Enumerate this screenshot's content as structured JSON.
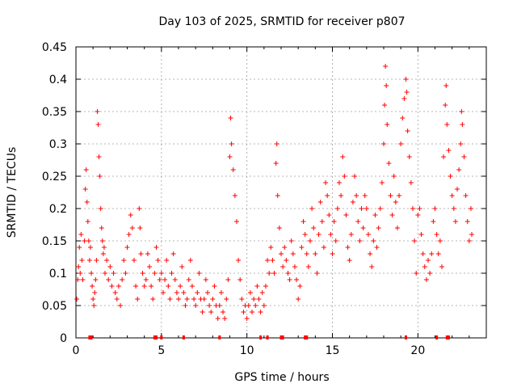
{
  "chart_data": {
    "type": "scatter",
    "title": "Day 103 of 2025, SRMTID for receiver p807",
    "xlabel": "GPS time / hours",
    "ylabel": "SRMTID / TECUs",
    "xlim": [
      0,
      24
    ],
    "ylim": [
      0,
      0.45
    ],
    "xticks": [
      0,
      5,
      10,
      15,
      20
    ],
    "xtick_labels": [
      "0",
      "5",
      "10",
      "15",
      "20"
    ],
    "yticks": [
      0,
      0.05,
      0.1,
      0.15,
      0.2,
      0.25,
      0.3,
      0.35,
      0.4,
      0.45
    ],
    "ytick_labels": [
      "0",
      "0.05",
      "0.1",
      "0.15",
      "0.2",
      "0.25",
      "0.3",
      "0.35",
      "0.4",
      "0.45"
    ],
    "grid": true,
    "marker": "+",
    "color": "#ff0000",
    "series": [
      {
        "name": "SRMTID",
        "points": [
          [
            0.05,
            0.06
          ],
          [
            0.1,
            0.09
          ],
          [
            0.15,
            0.11
          ],
          [
            0.2,
            0.14
          ],
          [
            0.25,
            0.1
          ],
          [
            0.3,
            0.16
          ],
          [
            0.35,
            0.12
          ],
          [
            0.4,
            0.09
          ],
          [
            0.5,
            0.15
          ],
          [
            0.55,
            0.23
          ],
          [
            0.6,
            0.26
          ],
          [
            0.65,
            0.21
          ],
          [
            0.7,
            0.18
          ],
          [
            0.75,
            0.15
          ],
          [
            0.8,
            0.12
          ],
          [
            0.85,
            0.14
          ],
          [
            0.9,
            0.1
          ],
          [
            0.95,
            0.08
          ],
          [
            1.0,
            0.06
          ],
          [
            1.05,
            0.05
          ],
          [
            1.1,
            0.07
          ],
          [
            1.15,
            0.09
          ],
          [
            1.2,
            0.12
          ],
          [
            1.25,
            0.35
          ],
          [
            1.3,
            0.33
          ],
          [
            1.35,
            0.28
          ],
          [
            1.4,
            0.25
          ],
          [
            1.45,
            0.2
          ],
          [
            1.5,
            0.17
          ],
          [
            1.55,
            0.15
          ],
          [
            1.6,
            0.13
          ],
          [
            1.65,
            0.14
          ],
          [
            1.7,
            0.1
          ],
          [
            1.8,
            0.12
          ],
          [
            1.9,
            0.09
          ],
          [
            2.0,
            0.11
          ],
          [
            2.1,
            0.08
          ],
          [
            2.2,
            0.1
          ],
          [
            2.3,
            0.07
          ],
          [
            2.4,
            0.06
          ],
          [
            2.5,
            0.08
          ],
          [
            2.6,
            0.05
          ],
          [
            2.7,
            0.09
          ],
          [
            2.8,
            0.12
          ],
          [
            2.9,
            0.1
          ],
          [
            3.0,
            0.14
          ],
          [
            3.1,
            0.16
          ],
          [
            3.2,
            0.19
          ],
          [
            3.3,
            0.17
          ],
          [
            3.4,
            0.12
          ],
          [
            3.5,
            0.08
          ],
          [
            3.6,
            0.06
          ],
          [
            3.7,
            0.2
          ],
          [
            3.75,
            0.17
          ],
          [
            3.8,
            0.13
          ],
          [
            3.9,
            0.1
          ],
          [
            4.0,
            0.08
          ],
          [
            4.1,
            0.09
          ],
          [
            4.2,
            0.13
          ],
          [
            4.3,
            0.11
          ],
          [
            4.4,
            0.08
          ],
          [
            4.5,
            0.06
          ],
          [
            4.6,
            0.1
          ],
          [
            4.7,
            0.14
          ],
          [
            4.8,
            0.12
          ],
          [
            4.9,
            0.09
          ],
          [
            5.0,
            0.1
          ],
          [
            5.1,
            0.07
          ],
          [
            5.2,
            0.09
          ],
          [
            5.3,
            0.12
          ],
          [
            5.4,
            0.08
          ],
          [
            5.5,
            0.06
          ],
          [
            5.6,
            0.1
          ],
          [
            5.7,
            0.13
          ],
          [
            5.8,
            0.09
          ],
          [
            5.9,
            0.07
          ],
          [
            6.0,
            0.06
          ],
          [
            6.1,
            0.08
          ],
          [
            6.2,
            0.11
          ],
          [
            6.3,
            0.07
          ],
          [
            6.4,
            0.05
          ],
          [
            6.5,
            0.06
          ],
          [
            6.6,
            0.09
          ],
          [
            6.7,
            0.12
          ],
          [
            6.8,
            0.08
          ],
          [
            6.9,
            0.06
          ],
          [
            7.0,
            0.05
          ],
          [
            7.1,
            0.07
          ],
          [
            7.2,
            0.1
          ],
          [
            7.3,
            0.06
          ],
          [
            7.4,
            0.04
          ],
          [
            7.5,
            0.06
          ],
          [
            7.6,
            0.09
          ],
          [
            7.7,
            0.07
          ],
          [
            7.8,
            0.05
          ],
          [
            7.9,
            0.04
          ],
          [
            8.0,
            0.06
          ],
          [
            8.1,
            0.08
          ],
          [
            8.2,
            0.05
          ],
          [
            8.3,
            0.03
          ],
          [
            8.4,
            0.05
          ],
          [
            8.5,
            0.07
          ],
          [
            8.6,
            0.04
          ],
          [
            8.7,
            0.03
          ],
          [
            8.8,
            0.06
          ],
          [
            8.9,
            0.09
          ],
          [
            9.0,
            0.28
          ],
          [
            9.05,
            0.34
          ],
          [
            9.1,
            0.3
          ],
          [
            9.2,
            0.26
          ],
          [
            9.3,
            0.22
          ],
          [
            9.4,
            0.18
          ],
          [
            9.5,
            0.12
          ],
          [
            9.6,
            0.09
          ],
          [
            9.7,
            0.06
          ],
          [
            9.8,
            0.04
          ],
          [
            9.9,
            0.05
          ],
          [
            10.0,
            0.03
          ],
          [
            10.1,
            0.05
          ],
          [
            10.2,
            0.07
          ],
          [
            10.3,
            0.04
          ],
          [
            10.4,
            0.06
          ],
          [
            10.5,
            0.05
          ],
          [
            10.6,
            0.08
          ],
          [
            10.7,
            0.06
          ],
          [
            10.8,
            0.04
          ],
          [
            10.9,
            0.07
          ],
          [
            11.0,
            0.05
          ],
          [
            11.1,
            0.08
          ],
          [
            11.2,
            0.12
          ],
          [
            11.3,
            0.1
          ],
          [
            11.4,
            0.14
          ],
          [
            11.5,
            0.12
          ],
          [
            11.6,
            0.1
          ],
          [
            11.7,
            0.27
          ],
          [
            11.75,
            0.3
          ],
          [
            11.8,
            0.22
          ],
          [
            11.9,
            0.17
          ],
          [
            12.0,
            0.13
          ],
          [
            12.1,
            0.11
          ],
          [
            12.2,
            0.14
          ],
          [
            12.3,
            0.12
          ],
          [
            12.4,
            0.1
          ],
          [
            12.5,
            0.09
          ],
          [
            12.6,
            0.15
          ],
          [
            12.7,
            0.13
          ],
          [
            12.8,
            0.11
          ],
          [
            12.9,
            0.09
          ],
          [
            13.0,
            0.06
          ],
          [
            13.1,
            0.08
          ],
          [
            13.2,
            0.14
          ],
          [
            13.3,
            0.18
          ],
          [
            13.4,
            0.16
          ],
          [
            13.5,
            0.13
          ],
          [
            13.6,
            0.11
          ],
          [
            13.7,
            0.15
          ],
          [
            13.8,
            0.2
          ],
          [
            13.9,
            0.17
          ],
          [
            14.0,
            0.13
          ],
          [
            14.1,
            0.1
          ],
          [
            14.2,
            0.16
          ],
          [
            14.3,
            0.21
          ],
          [
            14.4,
            0.18
          ],
          [
            14.5,
            0.14
          ],
          [
            14.6,
            0.24
          ],
          [
            14.7,
            0.22
          ],
          [
            14.8,
            0.19
          ],
          [
            14.9,
            0.16
          ],
          [
            15.0,
            0.13
          ],
          [
            15.1,
            0.18
          ],
          [
            15.2,
            0.15
          ],
          [
            15.3,
            0.2
          ],
          [
            15.4,
            0.24
          ],
          [
            15.5,
            0.22
          ],
          [
            15.6,
            0.28
          ],
          [
            15.7,
            0.25
          ],
          [
            15.8,
            0.19
          ],
          [
            15.9,
            0.14
          ],
          [
            16.0,
            0.12
          ],
          [
            16.1,
            0.16
          ],
          [
            16.2,
            0.21
          ],
          [
            16.3,
            0.25
          ],
          [
            16.4,
            0.22
          ],
          [
            16.5,
            0.18
          ],
          [
            16.6,
            0.15
          ],
          [
            16.7,
            0.2
          ],
          [
            16.8,
            0.17
          ],
          [
            16.9,
            0.22
          ],
          [
            17.0,
            0.2
          ],
          [
            17.1,
            0.16
          ],
          [
            17.2,
            0.13
          ],
          [
            17.3,
            0.11
          ],
          [
            17.4,
            0.15
          ],
          [
            17.5,
            0.19
          ],
          [
            17.6,
            0.14
          ],
          [
            17.7,
            0.17
          ],
          [
            17.8,
            0.2
          ],
          [
            17.9,
            0.24
          ],
          [
            18.0,
            0.3
          ],
          [
            18.05,
            0.36
          ],
          [
            18.1,
            0.42
          ],
          [
            18.15,
            0.39
          ],
          [
            18.2,
            0.33
          ],
          [
            18.3,
            0.27
          ],
          [
            18.4,
            0.22
          ],
          [
            18.5,
            0.19
          ],
          [
            18.6,
            0.25
          ],
          [
            18.7,
            0.21
          ],
          [
            18.8,
            0.17
          ],
          [
            18.9,
            0.22
          ],
          [
            19.0,
            0.3
          ],
          [
            19.1,
            0.34
          ],
          [
            19.2,
            0.37
          ],
          [
            19.3,
            0.4
          ],
          [
            19.35,
            0.38
          ],
          [
            19.4,
            0.32
          ],
          [
            19.5,
            0.28
          ],
          [
            19.6,
            0.24
          ],
          [
            19.7,
            0.2
          ],
          [
            19.8,
            0.15
          ],
          [
            19.9,
            0.1
          ],
          [
            20.0,
            0.19
          ],
          [
            20.1,
            0.2
          ],
          [
            20.2,
            0.16
          ],
          [
            20.3,
            0.13
          ],
          [
            20.4,
            0.11
          ],
          [
            20.5,
            0.09
          ],
          [
            20.6,
            0.12
          ],
          [
            20.7,
            0.1
          ],
          [
            20.8,
            0.13
          ],
          [
            20.9,
            0.18
          ],
          [
            21.0,
            0.2
          ],
          [
            21.1,
            0.16
          ],
          [
            21.2,
            0.13
          ],
          [
            21.3,
            0.15
          ],
          [
            21.4,
            0.11
          ],
          [
            21.5,
            0.28
          ],
          [
            21.6,
            0.36
          ],
          [
            21.65,
            0.39
          ],
          [
            21.7,
            0.33
          ],
          [
            21.8,
            0.29
          ],
          [
            21.9,
            0.25
          ],
          [
            22.0,
            0.22
          ],
          [
            22.1,
            0.2
          ],
          [
            22.2,
            0.18
          ],
          [
            22.3,
            0.23
          ],
          [
            22.4,
            0.26
          ],
          [
            22.5,
            0.3
          ],
          [
            22.55,
            0.35
          ],
          [
            22.6,
            0.33
          ],
          [
            22.7,
            0.28
          ],
          [
            22.8,
            0.22
          ],
          [
            22.9,
            0.18
          ],
          [
            23.0,
            0.15
          ],
          [
            23.1,
            0.2
          ],
          [
            23.15,
            0.16
          ]
        ],
        "zero_markers": [
          0.8,
          0.9,
          4.6,
          4.7,
          5.0,
          6.3,
          8.4,
          10.8,
          11.2,
          12.0,
          12.1,
          13.4,
          13.5,
          19.3,
          21.1,
          21.7,
          21.8
        ]
      }
    ]
  }
}
